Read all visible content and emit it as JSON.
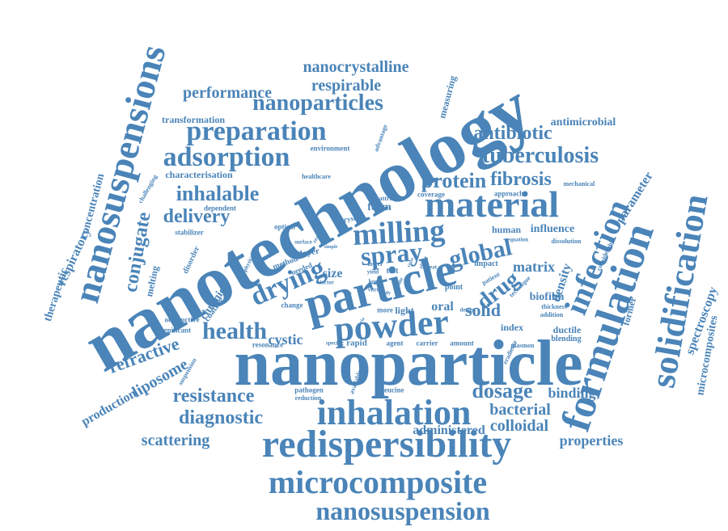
{
  "style": {
    "word_color": "#4a84b8",
    "background": "#ffffff"
  },
  "words": [
    {
      "text": "nanotechnology"
    },
    {
      "text": "nanoparticle"
    },
    {
      "text": "particle"
    },
    {
      "text": "nanosuspensions"
    },
    {
      "text": "formulation"
    },
    {
      "text": "solidification"
    },
    {
      "text": "infection"
    },
    {
      "text": "redispersibility"
    },
    {
      "text": "microcomposite"
    },
    {
      "text": "inhalation"
    },
    {
      "text": "powder"
    },
    {
      "text": "material"
    },
    {
      "text": "nanosuspension"
    },
    {
      "text": "preparation"
    },
    {
      "text": "adsorption"
    },
    {
      "text": "milling"
    },
    {
      "text": "spray"
    },
    {
      "text": "drying"
    },
    {
      "text": "global"
    },
    {
      "text": "drug"
    },
    {
      "text": "health"
    },
    {
      "text": "tuberculosis"
    },
    {
      "text": "nanoparticles"
    },
    {
      "text": "resistance"
    },
    {
      "text": "diagnostic"
    },
    {
      "text": "dosage"
    },
    {
      "text": "inhalable"
    },
    {
      "text": "protein"
    },
    {
      "text": "fibrosis"
    },
    {
      "text": "delivery"
    },
    {
      "text": "antibiotic"
    },
    {
      "text": "nanocrystalline"
    },
    {
      "text": "respirable"
    },
    {
      "text": "performance"
    },
    {
      "text": "refractive"
    },
    {
      "text": "liposome"
    },
    {
      "text": "bacterial"
    },
    {
      "text": "colloidal"
    },
    {
      "text": "scattering"
    },
    {
      "text": "properties"
    },
    {
      "text": "administered"
    },
    {
      "text": "spectroscopy"
    },
    {
      "text": "microcomposites"
    },
    {
      "text": "conjugate"
    },
    {
      "text": "solid"
    },
    {
      "text": "cystic"
    },
    {
      "text": "parameter"
    },
    {
      "text": "binding"
    },
    {
      "text": "production"
    },
    {
      "text": "matrix"
    },
    {
      "text": "density"
    },
    {
      "text": "respiratory"
    },
    {
      "text": "concentration"
    },
    {
      "text": "therapeutic"
    },
    {
      "text": "antimicrobial"
    },
    {
      "text": "transformation"
    },
    {
      "text": "characterisation"
    },
    {
      "text": "form"
    },
    {
      "text": "oral"
    },
    {
      "text": "size"
    },
    {
      "text": "biofilm"
    },
    {
      "text": "influence"
    },
    {
      "text": "human"
    },
    {
      "text": "chronic"
    },
    {
      "text": "melting"
    },
    {
      "text": "measuring"
    },
    {
      "text": "environment"
    },
    {
      "text": "dependent"
    },
    {
      "text": "stabilizer"
    },
    {
      "text": "optical"
    },
    {
      "text": "coverage"
    },
    {
      "text": "approach"
    },
    {
      "text": "layer"
    },
    {
      "text": "crystal"
    },
    {
      "text": "index"
    },
    {
      "text": "ductile"
    },
    {
      "text": "blending"
    },
    {
      "text": "amount"
    },
    {
      "text": "rapid"
    },
    {
      "text": "carrier"
    },
    {
      "text": "agent"
    },
    {
      "text": "resonance"
    },
    {
      "text": "change"
    },
    {
      "text": "leucine"
    },
    {
      "text": "pathogen"
    },
    {
      "text": "reduction"
    },
    {
      "text": "plasmon"
    },
    {
      "text": "healthcare"
    },
    {
      "text": "challenging"
    },
    {
      "text": "mechanical"
    },
    {
      "text": "dissolution"
    },
    {
      "text": "considerable"
    },
    {
      "text": "former"
    },
    {
      "text": "thickness"
    },
    {
      "text": "addition"
    },
    {
      "text": "eradicate"
    },
    {
      "text": "technique"
    },
    {
      "text": "impact"
    },
    {
      "text": "patient"
    },
    {
      "text": "point"
    },
    {
      "text": "equation"
    },
    {
      "text": "lower"
    },
    {
      "text": "test"
    },
    {
      "text": "lung"
    },
    {
      "text": "more"
    },
    {
      "text": "light"
    },
    {
      "text": "specific"
    },
    {
      "text": "significant"
    },
    {
      "text": "obstructive"
    },
    {
      "text": "coating"
    },
    {
      "text": "disorder"
    },
    {
      "text": "method"
    },
    {
      "text": "needed"
    },
    {
      "text": "physical"
    },
    {
      "text": "surface"
    },
    {
      "text": "suspension"
    },
    {
      "text": "available"
    },
    {
      "text": "attractive"
    },
    {
      "text": "advantage"
    },
    {
      "text": "design"
    },
    {
      "text": "treat"
    },
    {
      "text": "effect"
    },
    {
      "text": "state"
    },
    {
      "text": "yield"
    },
    {
      "text": "result"
    },
    {
      "text": "simple"
    },
    {
      "text": "factor"
    },
    {
      "text": "vitro"
    },
    {
      "text": "ratio"
    },
    {
      "text": "study"
    },
    {
      "text": "malaria"
    },
    {
      "text": "wide"
    }
  ]
}
